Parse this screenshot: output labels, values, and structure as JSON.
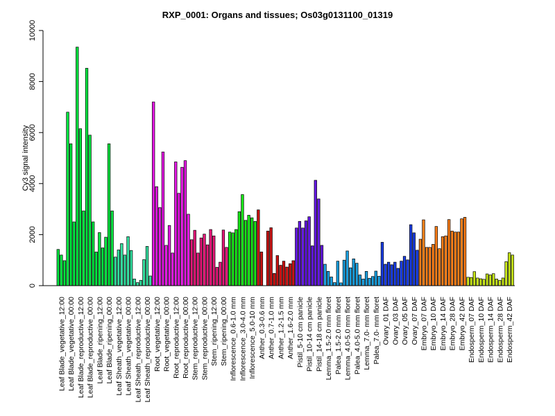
{
  "chart_data": {
    "type": "bar",
    "title": "RXP_0001: Organs and tissues; Os03g0131100_01319",
    "xlabel": "",
    "ylabel": "Cy3 signal intensity",
    "ylim": [
      0,
      10000
    ],
    "yticks": [
      0,
      2000,
      4000,
      6000,
      8000,
      10000
    ],
    "grid": false,
    "legend": "none",
    "groups": [
      {
        "label": "Leaf Blade_vegetative_12:00",
        "color": "#00e640",
        "values": [
          1420,
          1200,
          980
        ]
      },
      {
        "label": "Leaf Blade_vegetative_00:00",
        "color": "#00e640",
        "values": [
          6800,
          5560,
          2500
        ]
      },
      {
        "label": "Leaf Blade_reproductive_12:00",
        "color": "#00e640",
        "values": [
          9350,
          6150,
          2930
        ]
      },
      {
        "label": "Leaf Blade_reproductive_00:00",
        "color": "#00e640",
        "values": [
          8520,
          5900,
          2500
        ]
      },
      {
        "label": "Leaf Blade_ripening_12:00",
        "color": "#00e640",
        "values": [
          1320,
          2080,
          1480
        ]
      },
      {
        "label": "Leaf Blade_ripening_00:00",
        "color": "#00e640",
        "values": [
          1900,
          5560,
          2930
        ]
      },
      {
        "label": "Leaf Sheath_vegetative_12:00",
        "color": "#33e0a0",
        "values": [
          1120,
          1400,
          1650
        ]
      },
      {
        "label": "Leaf Sheath_vegetative_00:00",
        "color": "#33e0a0",
        "values": [
          1200,
          1920,
          1380
        ]
      },
      {
        "label": "Leaf Sheath_reproductive_12:00",
        "color": "#33e0a0",
        "values": [
          260,
          120,
          210
        ]
      },
      {
        "label": "Leaf Sheath_reproductive_00:00",
        "color": "#33e0a0",
        "values": [
          1020,
          1540,
          380
        ]
      },
      {
        "label": "Root_vegetative_12:00",
        "color": "#e619e6",
        "values": [
          7200,
          3880,
          3060
        ]
      },
      {
        "label": "Root_vegetative_00:00",
        "color": "#e619e6",
        "values": [
          5240,
          1580,
          2360
        ]
      },
      {
        "label": "Root_reproductive_12:00",
        "color": "#e619e6",
        "values": [
          1280,
          4850,
          3620
        ]
      },
      {
        "label": "Root_reproductive_00:00",
        "color": "#e619e6",
        "values": [
          4640,
          4900,
          2800
        ]
      },
      {
        "label": "Stem_reproductive_12:00",
        "color": "#e6197a",
        "values": [
          1800,
          2170,
          1280
        ]
      },
      {
        "label": "Stem_reproductive_00:00",
        "color": "#e6197a",
        "values": [
          1870,
          2020,
          1600
        ]
      },
      {
        "label": "Stem_ripening_12:00",
        "color": "#e6197a",
        "values": [
          2200,
          1950,
          720
        ]
      },
      {
        "label": "Stem_ripening_00:00",
        "color": "#e6197a",
        "values": [
          920,
          2180,
          1500
        ]
      },
      {
        "label": "Inflorescence_0.6-1.0 mm",
        "color": "#19e619",
        "values": [
          2100,
          2070,
          2200
        ]
      },
      {
        "label": "Inflorescence_3.0-4.0 mm",
        "color": "#19e619",
        "values": [
          2900,
          3570,
          2560
        ]
      },
      {
        "label": "Inflorescence_5.0-10 mm",
        "color": "#19e619",
        "values": [
          2760,
          2660,
          2520
        ]
      },
      {
        "label": "Anther_0.3-0.6 mm",
        "color": "#cc1414",
        "values": [
          2970,
          1320,
          0
        ]
      },
      {
        "label": "Anther_0.7-1.0 mm",
        "color": "#cc1414",
        "values": [
          2140,
          2270,
          480
        ]
      },
      {
        "label": "Anther_1.2-1.5 mm",
        "color": "#cc1414",
        "values": [
          1180,
          800,
          960
        ]
      },
      {
        "label": "Anther_1.6-2.0 mm",
        "color": "#cc1414",
        "values": [
          730,
          860,
          980
        ]
      },
      {
        "label": "Pistil_5-10 cm panicle",
        "color": "#6619e6",
        "values": [
          2260,
          2520,
          2260
        ]
      },
      {
        "label": "Pistil_10-14 cm panicle",
        "color": "#6619e6",
        "values": [
          2540,
          2700,
          1560
        ]
      },
      {
        "label": "Pistil_14-18 cm panicle",
        "color": "#6619e6",
        "values": [
          4130,
          3400,
          1580
        ]
      },
      {
        "label": "Lemma_1.5-2.0 mm floret",
        "color": "#1aa0e0",
        "values": [
          840,
          560,
          340
        ]
      },
      {
        "label": "Palea_1.5-2.0 mm floret",
        "color": "#1aa0e0",
        "values": [
          120,
          960,
          110
        ]
      },
      {
        "label": "Lemma_4.0-5.0 mm floret",
        "color": "#1aa0e0",
        "values": [
          1000,
          1360,
          700
        ]
      },
      {
        "label": "Palea_4.0-5.0 mm floret",
        "color": "#1aa0e0",
        "values": [
          1050,
          880,
          420
        ]
      },
      {
        "label": "Lemma_7.0- mm floret",
        "color": "#1aa0e0",
        "values": [
          260,
          560,
          290
        ]
      },
      {
        "label": "Palea_7.0- mm floret",
        "color": "#1aa0e0",
        "values": [
          360,
          570,
          370
        ]
      },
      {
        "label": "Ovary_01 DAF",
        "color": "#1a3ee6",
        "values": [
          1700,
          840,
          920
        ]
      },
      {
        "label": "Ovary_03 DAF",
        "color": "#1a3ee6",
        "values": [
          820,
          920,
          680
        ]
      },
      {
        "label": "Ovary_05 DAF",
        "color": "#1a3ee6",
        "values": [
          960,
          1150,
          1010
        ]
      },
      {
        "label": "Ovary_07 DAF",
        "color": "#1a3ee6",
        "values": [
          2390,
          2070,
          1390
        ]
      },
      {
        "label": "Embryo_07 DAF",
        "color": "#ff8019",
        "values": [
          1820,
          2580,
          1500
        ]
      },
      {
        "label": "Embryo_10 DAF",
        "color": "#ff8019",
        "values": [
          1500,
          1620,
          2320
        ]
      },
      {
        "label": "Embryo_14 DAF",
        "color": "#ff8019",
        "values": [
          1450,
          1920,
          1950
        ]
      },
      {
        "label": "Embryo_28 DAF",
        "color": "#ff8019",
        "values": [
          2590,
          2140,
          2100
        ]
      },
      {
        "label": "Embryo_42 DAF",
        "color": "#ff8019",
        "values": [
          2100,
          2620,
          2680
        ]
      },
      {
        "label": "Endosperm_07 DAF",
        "color": "#c8e619",
        "values": [
          330,
          320,
          550
        ]
      },
      {
        "label": "Endosperm_10 DAF",
        "color": "#c8e619",
        "values": [
          300,
          270,
          250
        ]
      },
      {
        "label": "Endosperm_14 DAF",
        "color": "#c8e619",
        "values": [
          460,
          420,
          470
        ]
      },
      {
        "label": "Endosperm_28 DAF",
        "color": "#c8e619",
        "values": [
          260,
          210,
          300
        ]
      },
      {
        "label": "Endosperm_42 DAF",
        "color": "#c8e619",
        "values": [
          940,
          1290,
          1200
        ]
      }
    ],
    "categories_shown": [
      "Leaf Blade_vegetative_12:00",
      "Leaf Blade_vegetative_00:00",
      "Leaf Blade_reproductive_12:00",
      "Leaf Blade_reproductive_00:00",
      "Leaf Blade_ripening_12:00",
      "Leaf Blade_ripening_00:00",
      "Leaf Sheath_vegetative_12:00",
      "Leaf Sheath_vegetative_00:00",
      "Leaf Sheath_reproductive_12:00",
      "Leaf Sheath_reproductive_00:00",
      "Root_vegetative_12:00",
      "Root_vegetative_00:00",
      "Root_reproductive_12:00",
      "Root_reproductive_00:00",
      "Stem_reproductive_12:00",
      "Stem_reproductive_00:00",
      "Stem_ripening_12:00",
      "Stem_ripening_00:00",
      "Inflorescence_0.6-1.0 mm",
      "Inflorescence_3.0-4.0 mm",
      "Inflorescence_5.0-10 mm",
      "Anther_0.3-0.6 mm",
      "Anther_0.7-1.0 mm",
      "Anther_1.2-1.5 mm",
      "Anther_1.6-2.0 mm",
      "Pistil_5-10 cm panicle",
      "Pistil_10-14 cm panicle",
      "Pistil_14-18 cm panicle",
      "Lemma_1.5-2.0 mm floret",
      "Palea_1.5-2.0 mm floret",
      "Lemma_4.0-5.0 mm floret",
      "Palea_4.0-5.0 mm floret",
      "Lemma_7.0- mm floret",
      "Palea_7.0- mm floret",
      "Ovary_01 DAF",
      "Ovary_03 DAF",
      "Ovary_05 DAF",
      "Ovary_07 DAF",
      "Embryo_07 DAF",
      "Embryo_10 DAF",
      "Embryo_14 DAF",
      "Embryo_28 DAF",
      "Embryo_42 DAF",
      "Endosperm_07 DAF",
      "Endosperm_10 DAF",
      "Endosperm_14 DAF",
      "Endosperm_28 DAF",
      "Endosperm_42 DAF"
    ]
  }
}
